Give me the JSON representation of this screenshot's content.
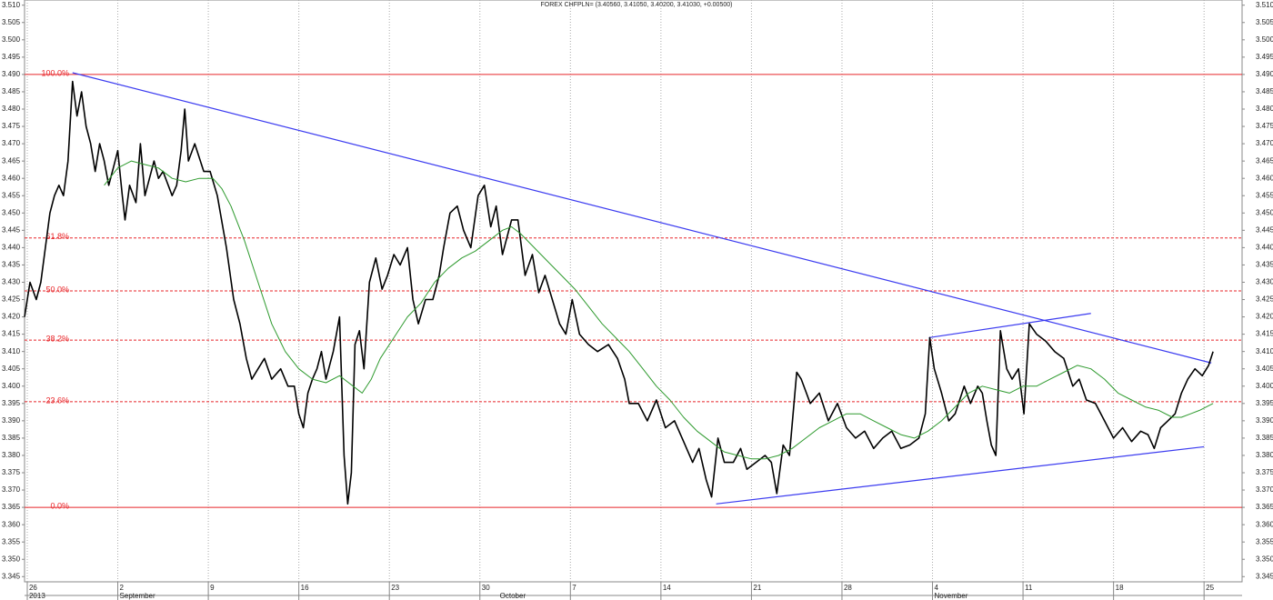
{
  "chart_data": {
    "type": "line",
    "title": "FOREX CHFPLN= (3.40560, 3.41050, 3.40200, 3.41030, +0.00500)",
    "xlim": [
      -0.15,
      67.1
    ],
    "ylim": [
      3.3435,
      3.5115
    ],
    "xticks": [
      {
        "value": 0,
        "label": "26"
      },
      {
        "value": 5,
        "label": "2"
      },
      {
        "value": 10,
        "label": "9"
      },
      {
        "value": 15,
        "label": "16"
      },
      {
        "value": 20,
        "label": "23"
      },
      {
        "value": 25,
        "label": "30"
      },
      {
        "value": 30,
        "label": "7"
      },
      {
        "value": 35,
        "label": "14"
      },
      {
        "value": 40,
        "label": "21"
      },
      {
        "value": 45,
        "label": "28"
      },
      {
        "value": 50,
        "label": "4"
      },
      {
        "value": 55,
        "label": "11"
      },
      {
        "value": 60,
        "label": "18"
      },
      {
        "value": 65,
        "label": "25"
      }
    ],
    "x_period_labels": [
      {
        "value": 0,
        "label": "2013"
      },
      {
        "value": 5,
        "label": "September"
      },
      {
        "value": 26,
        "label": "October"
      },
      {
        "value": 50,
        "label": "November"
      }
    ],
    "yticks": [
      {
        "value": 3.345,
        "label": "3.345"
      },
      {
        "value": 3.35,
        "label": "3.350"
      },
      3.355,
      {
        "value": 3.36,
        "label": "3.360"
      },
      3.365,
      {
        "value": 3.37,
        "label": "3.370"
      },
      3.375,
      {
        "value": 3.38,
        "label": "3.380"
      },
      3.385,
      {
        "value": 3.39,
        "label": "3.390"
      },
      3.395,
      {
        "value": 3.4,
        "label": "3.400"
      },
      3.405,
      {
        "value": 3.41,
        "label": "3.410"
      },
      3.415,
      {
        "value": 3.42,
        "label": "3.420"
      },
      3.425,
      {
        "value": 3.43,
        "label": "3.430"
      },
      3.435,
      {
        "value": 3.44,
        "label": "3.440"
      },
      3.445,
      {
        "value": 3.45,
        "label": "3.450"
      },
      3.455,
      {
        "value": 3.46,
        "label": "3.460"
      },
      3.465,
      {
        "value": 3.47,
        "label": "3.470"
      },
      3.475,
      {
        "value": 3.48,
        "label": "3.480"
      },
      3.485,
      {
        "value": 3.49,
        "label": "3.490"
      },
      3.495,
      {
        "value": 3.5,
        "label": "3.500"
      },
      3.505,
      {
        "value": 3.51,
        "label": "3.510"
      }
    ],
    "grid": "x",
    "series": [
      {
        "color": "#000000",
        "width": 1.6,
        "x": [
          -0.15,
          0.15,
          0.5,
          0.75,
          1,
          1.25,
          1.5,
          1.75,
          2,
          2.25,
          2.5,
          2.75,
          3,
          3.25,
          3.5,
          3.75,
          4,
          4.25,
          4.5,
          4.75,
          5,
          5.25,
          5.4,
          5.65,
          6,
          6.25,
          6.5,
          7,
          7.25,
          7.5,
          8,
          8.25,
          8.5,
          8.7,
          8.9,
          9.25,
          9.75,
          10.1,
          10.5,
          11,
          11.4,
          11.75,
          12.1,
          12.4,
          12.75,
          13.1,
          13.5,
          14,
          14.4,
          14.75,
          15,
          15.25,
          15.5,
          15.75,
          16,
          16.25,
          16.5,
          16.9,
          17.25,
          17.5,
          17.7,
          17.9,
          18.1,
          18.35,
          18.6,
          18.9,
          19.25,
          19.6,
          19.9,
          20.25,
          20.6,
          21,
          21.3,
          21.6,
          22,
          22.4,
          22.75,
          23,
          23.35,
          23.75,
          24.1,
          24.5,
          24.9,
          25.25,
          25.6,
          25.9,
          26.25,
          26.75,
          27.1,
          27.5,
          27.9,
          28.25,
          28.6,
          29,
          29.4,
          29.75,
          30.1,
          30.5,
          31,
          31.5,
          32.1,
          32.6,
          33,
          33.25,
          33.75,
          34.25,
          34.75,
          35.25,
          35.75,
          36.25,
          36.75,
          37.1,
          37.5,
          37.8,
          38.15,
          38.5,
          39,
          39.4,
          39.75,
          40.25,
          40.75,
          41.1,
          41.4,
          41.75,
          42.1,
          42.5,
          42.75,
          43.25,
          43.75,
          44.25,
          44.75,
          45.25,
          45.75,
          46.25,
          46.75,
          47.25,
          47.75,
          48.25,
          48.75,
          49.25,
          49.6,
          49.85,
          50.1,
          50.5,
          50.9,
          51.25,
          51.75,
          52.1,
          52.5,
          52.75,
          53,
          53.25,
          53.5,
          53.75,
          54.1,
          54.4,
          54.75,
          55.05,
          55.35,
          55.75,
          56.25,
          56.75,
          57.25,
          57.75,
          58.1,
          58.5,
          59,
          59.5,
          60,
          60.5,
          61,
          61.5,
          61.9,
          62.25,
          62.6,
          63,
          63.4,
          63.75,
          64.1,
          64.5,
          64.9,
          65.25,
          65.5
        ],
        "values": [
          3.42,
          3.43,
          3.425,
          3.43,
          3.44,
          3.45,
          3.455,
          3.458,
          3.455,
          3.465,
          3.488,
          3.478,
          3.485,
          3.475,
          3.47,
          3.462,
          3.47,
          3.465,
          3.458,
          3.463,
          3.468,
          3.455,
          3.448,
          3.458,
          3.453,
          3.47,
          3.455,
          3.465,
          3.46,
          3.462,
          3.455,
          3.458,
          3.468,
          3.48,
          3.465,
          3.47,
          3.462,
          3.462,
          3.455,
          3.44,
          3.425,
          3.418,
          3.408,
          3.402,
          3.405,
          3.408,
          3.402,
          3.405,
          3.4,
          3.4,
          3.392,
          3.388,
          3.398,
          3.402,
          3.405,
          3.41,
          3.402,
          3.41,
          3.42,
          3.38,
          3.366,
          3.375,
          3.412,
          3.416,
          3.405,
          3.43,
          3.437,
          3.428,
          3.432,
          3.438,
          3.435,
          3.44,
          3.425,
          3.418,
          3.425,
          3.425,
          3.432,
          3.44,
          3.45,
          3.452,
          3.445,
          3.44,
          3.455,
          3.458,
          3.446,
          3.452,
          3.438,
          3.448,
          3.448,
          3.432,
          3.438,
          3.427,
          3.432,
          3.425,
          3.418,
          3.415,
          3.425,
          3.415,
          3.412,
          3.41,
          3.412,
          3.408,
          3.402,
          3.395,
          3.395,
          3.39,
          3.396,
          3.388,
          3.39,
          3.384,
          3.378,
          3.382,
          3.373,
          3.368,
          3.385,
          3.378,
          3.378,
          3.382,
          3.376,
          3.378,
          3.38,
          3.378,
          3.369,
          3.383,
          3.38,
          3.404,
          3.402,
          3.395,
          3.398,
          3.39,
          3.395,
          3.388,
          3.385,
          3.387,
          3.382,
          3.385,
          3.387,
          3.382,
          3.383,
          3.385,
          3.392,
          3.414,
          3.405,
          3.398,
          3.39,
          3.392,
          3.4,
          3.395,
          3.4,
          3.398,
          3.39,
          3.383,
          3.38,
          3.416,
          3.405,
          3.402,
          3.405,
          3.392,
          3.418,
          3.415,
          3.413,
          3.41,
          3.408,
          3.4,
          3.402,
          3.396,
          3.395,
          3.39,
          3.385,
          3.388,
          3.384,
          3.387,
          3.386,
          3.382,
          3.388,
          3.39,
          3.392,
          3.398,
          3.402,
          3.405,
          3.403,
          3.406,
          3.41
        ]
      },
      {
        "color": "#2e9a2e",
        "width": 1,
        "x": [
          4.25,
          5,
          5.75,
          6.5,
          7.25,
          8,
          8.75,
          9.5,
          10.25,
          10.75,
          11.25,
          12,
          12.75,
          13.5,
          14.25,
          15,
          15.75,
          16.5,
          17.25,
          18,
          18.5,
          19,
          19.5,
          20.25,
          21,
          21.75,
          22.5,
          23.25,
          24,
          24.75,
          25.5,
          26.25,
          26.75,
          27.25,
          28,
          28.75,
          29.5,
          30.25,
          31,
          31.75,
          32.5,
          33.25,
          34,
          34.75,
          35.5,
          36.25,
          37,
          37.75,
          38.5,
          39.25,
          40,
          40.75,
          41.5,
          42.25,
          43,
          43.75,
          44.5,
          45.25,
          46,
          46.75,
          47.5,
          48.25,
          49,
          49.75,
          50.5,
          51.25,
          52,
          52.75,
          53.5,
          54.25,
          55,
          55.75,
          56.5,
          57.25,
          58,
          58.75,
          59.5,
          60.25,
          61,
          61.75,
          62.5,
          63.25,
          63.75,
          64.25,
          64.75,
          65.5
        ],
        "values": [
          3.458,
          3.463,
          3.465,
          3.464,
          3.463,
          3.46,
          3.459,
          3.46,
          3.46,
          3.457,
          3.452,
          3.442,
          3.43,
          3.418,
          3.41,
          3.405,
          3.402,
          3.401,
          3.403,
          3.4,
          3.398,
          3.402,
          3.408,
          3.414,
          3.42,
          3.424,
          3.43,
          3.434,
          3.437,
          3.439,
          3.442,
          3.445,
          3.446,
          3.444,
          3.44,
          3.436,
          3.432,
          3.428,
          3.423,
          3.418,
          3.414,
          3.41,
          3.405,
          3.4,
          3.396,
          3.391,
          3.387,
          3.384,
          3.381,
          3.38,
          3.379,
          3.379,
          3.38,
          3.382,
          3.385,
          3.388,
          3.39,
          3.392,
          3.392,
          3.39,
          3.388,
          3.386,
          3.385,
          3.387,
          3.39,
          3.394,
          3.398,
          3.4,
          3.399,
          3.398,
          3.4,
          3.4,
          3.402,
          3.404,
          3.406,
          3.405,
          3.402,
          3.398,
          3.396,
          3.394,
          3.393,
          3.391,
          3.391,
          3.392,
          3.393,
          3.395
        ]
      }
    ],
    "levels": [
      {
        "value": 3.49,
        "label": "100.0%",
        "dashed": false
      },
      {
        "value": 3.4428,
        "label": "61.8%",
        "dashed": true
      },
      {
        "value": 3.4275,
        "label": "50.0%",
        "dashed": true
      },
      {
        "value": 3.4133,
        "label": "38.2%",
        "dashed": true
      },
      {
        "value": 3.3955,
        "label": "23.6%",
        "dashed": true
      },
      {
        "value": 3.365,
        "label": "0.0%",
        "dashed": false
      }
    ],
    "level_color": "#e8262a",
    "trendline_color": "#3b3bf0",
    "trendlines": [
      {
        "x": [
          2.5,
          65.4
        ],
        "y": [
          3.4905,
          3.4067
        ]
      },
      {
        "x": [
          38.05,
          65
        ],
        "y": [
          3.366,
          3.3825
        ]
      },
      {
        "x": [
          49.8,
          58.75
        ],
        "y": [
          3.414,
          3.421
        ]
      }
    ]
  }
}
